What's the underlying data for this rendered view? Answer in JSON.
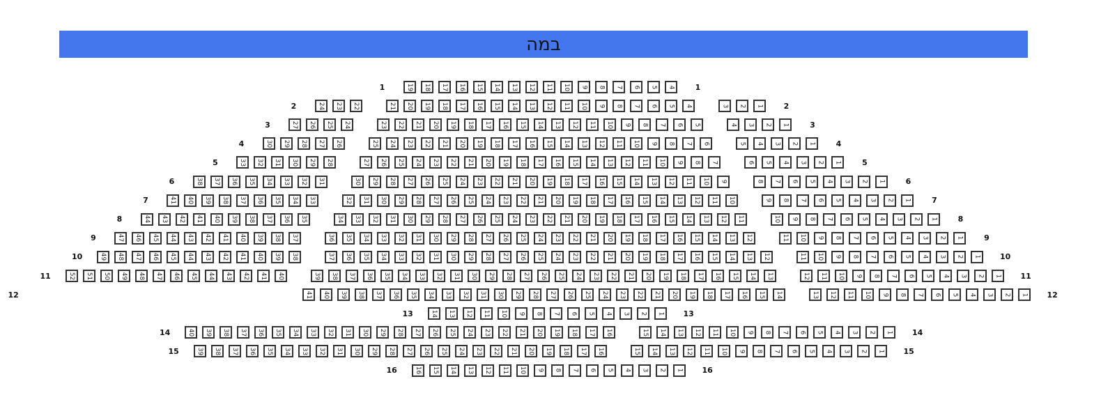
{
  "stage": {
    "label": "במה",
    "color": "#4477ee"
  },
  "seat_style": {
    "border": "#333333",
    "fill": "#ffffff"
  },
  "rows": [
    {
      "label": "1",
      "segments": [
        {
          "from": 19,
          "to": 4
        }
      ]
    },
    {
      "label": "2",
      "segments": [
        {
          "from": 24,
          "to": 22
        },
        {
          "from": 21,
          "to": 4
        },
        {
          "from": 3,
          "to": 1
        }
      ]
    },
    {
      "label": "3",
      "segments": [
        {
          "from": 27,
          "to": 24
        },
        {
          "from": 23,
          "to": 5
        },
        {
          "from": 4,
          "to": 1
        }
      ]
    },
    {
      "label": "4",
      "segments": [
        {
          "from": 30,
          "to": 26
        },
        {
          "from": 25,
          "to": 6
        },
        {
          "from": 5,
          "to": 1
        }
      ]
    },
    {
      "label": "5",
      "segments": [
        {
          "from": 33,
          "to": 28
        },
        {
          "from": 27,
          "to": 7
        },
        {
          "from": 6,
          "to": 1
        }
      ]
    },
    {
      "label": "6",
      "segments": [
        {
          "from": 38,
          "to": 31
        },
        {
          "from": 30,
          "to": 9
        },
        {
          "from": 8,
          "to": 1
        }
      ]
    },
    {
      "label": "7",
      "segments": [
        {
          "from": 41,
          "to": 33
        },
        {
          "from": 32,
          "to": 10
        },
        {
          "from": 9,
          "to": 1
        }
      ]
    },
    {
      "label": "8",
      "segments": [
        {
          "from": 44,
          "to": 35
        },
        {
          "from": 34,
          "to": 11
        },
        {
          "from": 10,
          "to": 1
        }
      ]
    },
    {
      "label": "9",
      "segments": [
        {
          "from": 47,
          "to": 37
        },
        {
          "from": 36,
          "to": 12
        },
        {
          "from": 11,
          "to": 1
        }
      ]
    },
    {
      "label": "10",
      "segments": [
        {
          "from": 49,
          "to": 38
        },
        {
          "from": 37,
          "to": 12
        },
        {
          "from": 11,
          "to": 1
        }
      ]
    },
    {
      "label": "11",
      "segments": [
        {
          "from": 52,
          "to": 40
        },
        {
          "from": 39,
          "to": 13
        },
        {
          "from": 12,
          "to": 1
        }
      ]
    },
    {
      "label": "12",
      "segments": [
        {
          "from": 41,
          "to": 14
        },
        {
          "from": 13,
          "to": 1
        }
      ]
    },
    {
      "label": "13",
      "segments": [
        {
          "from": 14,
          "to": 1
        }
      ]
    },
    {
      "label": "14",
      "segments": [
        {
          "from": 40,
          "to": 16
        },
        {
          "from": 15,
          "to": 1
        }
      ]
    },
    {
      "label": "15",
      "segments": [
        {
          "from": 39,
          "to": 16
        },
        {
          "from": 15,
          "to": 1
        }
      ]
    },
    {
      "label": "16",
      "segments": [
        {
          "from": 16,
          "to": 1
        }
      ]
    }
  ]
}
